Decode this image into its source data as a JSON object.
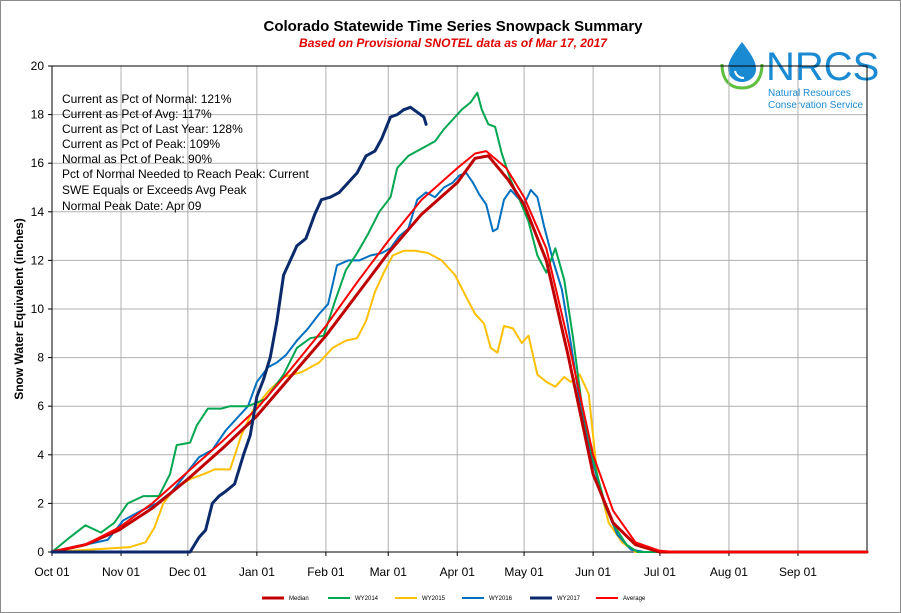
{
  "logo": {
    "acronym": "NRCS",
    "line1": "Natural Resources",
    "line2": "Conservation Service",
    "color": "#1a8bd3",
    "icon": "water-drop-icon"
  },
  "chart_data": {
    "type": "line",
    "title": "Colorado Statewide Time Series Snowpack Summary",
    "subtitle": "Based on Provisional SNOTEL data as of Mar 17, 2017",
    "ylabel": "Snow Water Equivalent (inches)",
    "xlabel": "",
    "ylim": [
      0,
      20
    ],
    "yticks": [
      "0",
      "2",
      "4",
      "6",
      "8",
      "10",
      "12",
      "14",
      "16",
      "18",
      "20"
    ],
    "xlim": [
      0,
      366
    ],
    "x_unit": "day of water year (Oct 01 = 0)",
    "xticks": [
      {
        "label": "Oct 01",
        "day": 0
      },
      {
        "label": "Nov 01",
        "day": 31
      },
      {
        "label": "Dec 01",
        "day": 61
      },
      {
        "label": "Jan 01",
        "day": 92
      },
      {
        "label": "Feb 01",
        "day": 123
      },
      {
        "label": "Mar 01",
        "day": 151
      },
      {
        "label": "Apr 01",
        "day": 182
      },
      {
        "label": "May 01",
        "day": 212
      },
      {
        "label": "Jun 01",
        "day": 243
      },
      {
        "label": "Jul 01",
        "day": 273
      },
      {
        "label": "Aug 01",
        "day": 304
      },
      {
        "label": "Sep 01",
        "day": 335
      }
    ],
    "grid": true,
    "legend_position": "bottom",
    "stats": [
      "Current  as Pct of Normal: 121%",
      "Current  as Pct of Avg:  117%",
      "Current  as Pct of Last Year: 128%",
      "Current  as Pct of Peak: 109%",
      "Normal as Pct of Peak: 90%",
      "Pct of Normal Needed  to Reach Peak: Current",
      "SWE Equals or Exceeds Avg Peak",
      "Normal Peak Date: Apr 09"
    ],
    "series": [
      {
        "name": "Median",
        "color": "#c00000",
        "width": 3,
        "points": [
          [
            0,
            0
          ],
          [
            15,
            0.3
          ],
          [
            30,
            0.9
          ],
          [
            45,
            1.8
          ],
          [
            61,
            3.0
          ],
          [
            77,
            4.3
          ],
          [
            92,
            5.6
          ],
          [
            107,
            7.2
          ],
          [
            123,
            8.9
          ],
          [
            137,
            10.6
          ],
          [
            151,
            12.3
          ],
          [
            166,
            13.9
          ],
          [
            182,
            15.2
          ],
          [
            190,
            16.2
          ],
          [
            196,
            16.3
          ],
          [
            205,
            15.3
          ],
          [
            212,
            14.3
          ],
          [
            222,
            12.0
          ],
          [
            232,
            8.0
          ],
          [
            243,
            3.2
          ],
          [
            252,
            1.2
          ],
          [
            262,
            0.3
          ],
          [
            273,
            0
          ],
          [
            366,
            0
          ]
        ]
      },
      {
        "name": "WY2014",
        "color": "#00a650",
        "width": 2,
        "points": [
          [
            0,
            0
          ],
          [
            8,
            0.6
          ],
          [
            15,
            1.1
          ],
          [
            22,
            0.8
          ],
          [
            28,
            1.2
          ],
          [
            34,
            2.0
          ],
          [
            41,
            2.3
          ],
          [
            48,
            2.3
          ],
          [
            53,
            3.2
          ],
          [
            56,
            4.4
          ],
          [
            62,
            4.5
          ],
          [
            65,
            5.2
          ],
          [
            70,
            5.9
          ],
          [
            76,
            5.9
          ],
          [
            80,
            6.0
          ],
          [
            88,
            6.0
          ],
          [
            96,
            6.3
          ],
          [
            104,
            7.3
          ],
          [
            110,
            8.4
          ],
          [
            116,
            8.8
          ],
          [
            122,
            8.9
          ],
          [
            127,
            10.3
          ],
          [
            132,
            11.6
          ],
          [
            137,
            12.3
          ],
          [
            142,
            13.1
          ],
          [
            147,
            14.0
          ],
          [
            152,
            14.6
          ],
          [
            155,
            15.8
          ],
          [
            160,
            16.3
          ],
          [
            166,
            16.6
          ],
          [
            172,
            16.9
          ],
          [
            176,
            17.4
          ],
          [
            180,
            17.8
          ],
          [
            184,
            18.2
          ],
          [
            188,
            18.5
          ],
          [
            191,
            18.9
          ],
          [
            193,
            18.2
          ],
          [
            196,
            17.6
          ],
          [
            199,
            17.5
          ],
          [
            202,
            16.4
          ],
          [
            206,
            15.3
          ],
          [
            210,
            14.5
          ],
          [
            214,
            13.6
          ],
          [
            218,
            12.2
          ],
          [
            222,
            11.5
          ],
          [
            226,
            12.5
          ],
          [
            230,
            11.2
          ],
          [
            234,
            8.8
          ],
          [
            238,
            6.0
          ],
          [
            243,
            3.8
          ],
          [
            248,
            2.1
          ],
          [
            253,
            1.0
          ],
          [
            258,
            0.3
          ],
          [
            263,
            0
          ],
          [
            366,
            0
          ]
        ]
      },
      {
        "name": "WY2015",
        "color": "#ffc000",
        "width": 2,
        "points": [
          [
            0,
            0
          ],
          [
            35,
            0.2
          ],
          [
            42,
            0.4
          ],
          [
            46,
            1.0
          ],
          [
            50,
            2.0
          ],
          [
            55,
            2.6
          ],
          [
            62,
            3.0
          ],
          [
            68,
            3.2
          ],
          [
            73,
            3.4
          ],
          [
            80,
            3.4
          ],
          [
            85,
            4.8
          ],
          [
            90,
            5.8
          ],
          [
            97,
            6.6
          ],
          [
            104,
            7.2
          ],
          [
            112,
            7.4
          ],
          [
            120,
            7.8
          ],
          [
            126,
            8.4
          ],
          [
            132,
            8.7
          ],
          [
            137,
            8.8
          ],
          [
            141,
            9.5
          ],
          [
            145,
            10.7
          ],
          [
            149,
            11.5
          ],
          [
            153,
            12.2
          ],
          [
            158,
            12.4
          ],
          [
            163,
            12.4
          ],
          [
            169,
            12.3
          ],
          [
            175,
            12.0
          ],
          [
            181,
            11.4
          ],
          [
            186,
            10.5
          ],
          [
            190,
            9.8
          ],
          [
            194,
            9.4
          ],
          [
            197,
            8.4
          ],
          [
            200,
            8.2
          ],
          [
            203,
            9.3
          ],
          [
            207,
            9.2
          ],
          [
            211,
            8.6
          ],
          [
            214,
            8.9
          ],
          [
            218,
            7.3
          ],
          [
            222,
            7.0
          ],
          [
            226,
            6.8
          ],
          [
            230,
            7.2
          ],
          [
            233,
            7.0
          ],
          [
            237,
            7.3
          ],
          [
            241,
            6.5
          ],
          [
            245,
            3.0
          ],
          [
            250,
            1.2
          ],
          [
            256,
            0.4
          ],
          [
            262,
            0
          ],
          [
            366,
            0
          ]
        ]
      },
      {
        "name": "WY2016",
        "color": "#0070c0",
        "width": 2,
        "points": [
          [
            0,
            0
          ],
          [
            15,
            0.3
          ],
          [
            25,
            0.5
          ],
          [
            32,
            1.3
          ],
          [
            40,
            1.7
          ],
          [
            47,
            2.0
          ],
          [
            54,
            2.5
          ],
          [
            60,
            3.2
          ],
          [
            66,
            3.9
          ],
          [
            72,
            4.2
          ],
          [
            78,
            5.0
          ],
          [
            84,
            5.6
          ],
          [
            88,
            6.0
          ],
          [
            92,
            7.0
          ],
          [
            97,
            7.6
          ],
          [
            101,
            7.8
          ],
          [
            105,
            8.1
          ],
          [
            110,
            8.7
          ],
          [
            115,
            9.2
          ],
          [
            120,
            9.8
          ],
          [
            124,
            10.2
          ],
          [
            128,
            11.8
          ],
          [
            133,
            12.0
          ],
          [
            138,
            12.0
          ],
          [
            143,
            12.2
          ],
          [
            148,
            12.3
          ],
          [
            152,
            12.5
          ],
          [
            156,
            13.0
          ],
          [
            160,
            13.3
          ],
          [
            164,
            14.5
          ],
          [
            168,
            14.8
          ],
          [
            172,
            14.6
          ],
          [
            176,
            15.0
          ],
          [
            180,
            15.2
          ],
          [
            183,
            15.5
          ],
          [
            186,
            15.6
          ],
          [
            189,
            15.2
          ],
          [
            192,
            14.7
          ],
          [
            195,
            14.3
          ],
          [
            198,
            13.2
          ],
          [
            200,
            13.3
          ],
          [
            203,
            14.5
          ],
          [
            206,
            14.9
          ],
          [
            209,
            14.6
          ],
          [
            212,
            14.3
          ],
          [
            215,
            14.9
          ],
          [
            218,
            14.6
          ],
          [
            221,
            13.4
          ],
          [
            225,
            12.0
          ],
          [
            229,
            10.8
          ],
          [
            233,
            8.6
          ],
          [
            237,
            6.2
          ],
          [
            242,
            4.0
          ],
          [
            248,
            2.0
          ],
          [
            254,
            0.7
          ],
          [
            260,
            0.1
          ],
          [
            266,
            0
          ],
          [
            366,
            0
          ]
        ]
      },
      {
        "name": "WY2017",
        "color": "#0a2a6c",
        "width": 3,
        "points": [
          [
            0,
            0
          ],
          [
            55,
            0
          ],
          [
            62,
            0
          ],
          [
            66,
            0.6
          ],
          [
            69,
            0.9
          ],
          [
            72,
            2.0
          ],
          [
            75,
            2.3
          ],
          [
            78,
            2.5
          ],
          [
            82,
            2.8
          ],
          [
            86,
            4.0
          ],
          [
            89,
            4.8
          ],
          [
            92,
            6.4
          ],
          [
            95,
            7.1
          ],
          [
            98,
            8.0
          ],
          [
            101,
            9.5
          ],
          [
            104,
            11.4
          ],
          [
            107,
            12.0
          ],
          [
            110,
            12.6
          ],
          [
            114,
            12.9
          ],
          [
            118,
            13.9
          ],
          [
            121,
            14.5
          ],
          [
            125,
            14.6
          ],
          [
            129,
            14.8
          ],
          [
            133,
            15.2
          ],
          [
            137,
            15.6
          ],
          [
            141,
            16.3
          ],
          [
            145,
            16.5
          ],
          [
            148,
            17.0
          ],
          [
            152,
            17.9
          ],
          [
            155,
            18.0
          ],
          [
            158,
            18.2
          ],
          [
            161,
            18.3
          ],
          [
            164,
            18.1
          ],
          [
            167,
            17.9
          ],
          [
            168,
            17.6
          ]
        ]
      },
      {
        "name": "Average",
        "color": "#ff0000",
        "width": 2,
        "points": [
          [
            0,
            0
          ],
          [
            15,
            0.3
          ],
          [
            30,
            1.0
          ],
          [
            45,
            2.0
          ],
          [
            61,
            3.3
          ],
          [
            77,
            4.6
          ],
          [
            92,
            5.9
          ],
          [
            107,
            7.5
          ],
          [
            123,
            9.3
          ],
          [
            137,
            11.1
          ],
          [
            151,
            12.8
          ],
          [
            166,
            14.5
          ],
          [
            182,
            15.8
          ],
          [
            190,
            16.4
          ],
          [
            195,
            16.5
          ],
          [
            204,
            15.8
          ],
          [
            212,
            14.6
          ],
          [
            222,
            12.5
          ],
          [
            232,
            8.6
          ],
          [
            243,
            4.0
          ],
          [
            252,
            1.7
          ],
          [
            262,
            0.4
          ],
          [
            273,
            0.05
          ],
          [
            280,
            0
          ],
          [
            366,
            0
          ]
        ]
      }
    ]
  }
}
